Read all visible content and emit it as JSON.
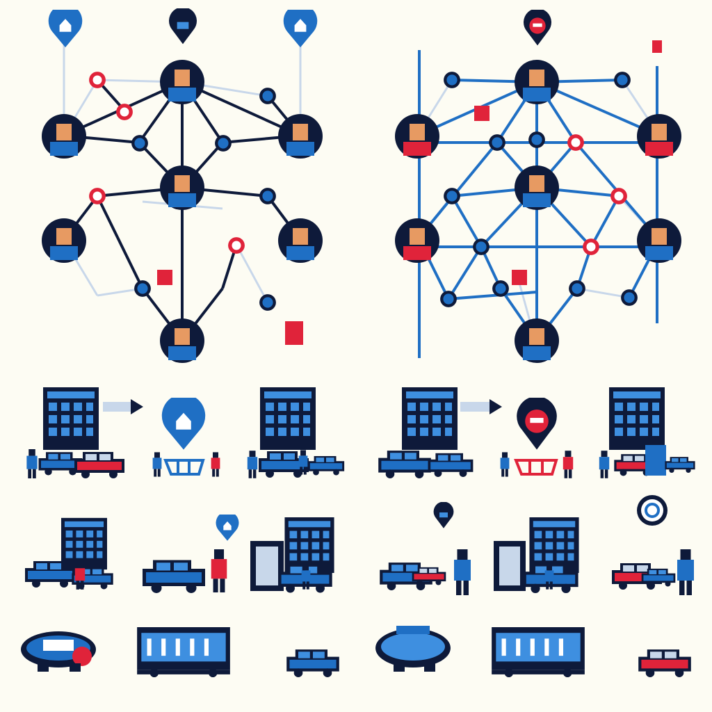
{
  "palette": {
    "background": "#fdfcf3",
    "navy": "#0e1a3a",
    "blue": "#1f6fc4",
    "light_blue": "#3e8fe0",
    "red": "#e0233a",
    "pale": "#c8d7ea",
    "skin": "#e79a62"
  },
  "networks": [
    {
      "name": "network-left",
      "accent": "navy",
      "pins": [
        "blue-cloud-pin-icon",
        "blue-bus-pin-icon",
        "blue-cloud-pin-icon"
      ]
    },
    {
      "name": "network-right",
      "accent": "blue",
      "pins": [
        "red-location-pin-icon",
        "small-red-signal-icon"
      ]
    }
  ],
  "scene_rows": [
    {
      "name": "row-building-traffic",
      "items": [
        "office-building-icon",
        "arrow-sign-icon",
        "location-pin-icon",
        "shopping-cart-icon",
        "office-building-icon",
        "car-icon",
        "person-icon"
      ]
    },
    {
      "name": "row-street-scenes",
      "items": [
        "building-icon",
        "car-icon",
        "person-icon",
        "location-pin-icon",
        "search-icon"
      ]
    },
    {
      "name": "row-vehicles",
      "items": [
        "car-icon",
        "bus-icon",
        "small-car-icon"
      ]
    }
  ]
}
